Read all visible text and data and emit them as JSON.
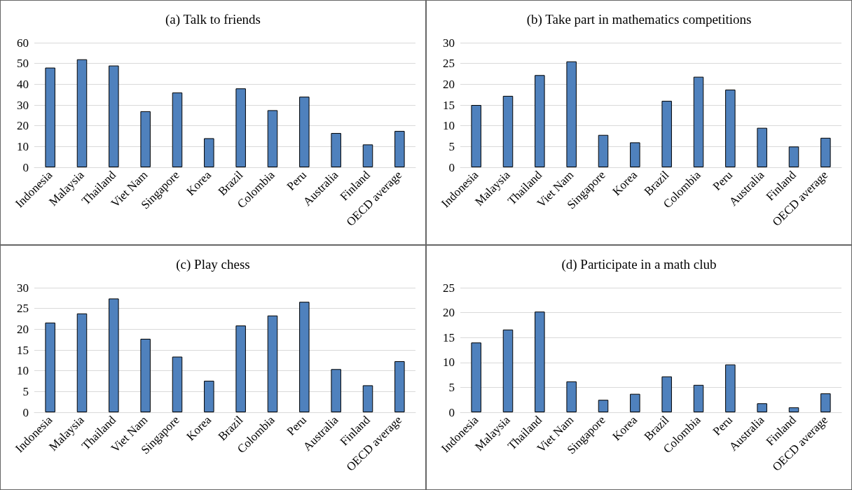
{
  "chart_data": [
    {
      "type": "bar",
      "title": "(a) Talk to friends",
      "categories": [
        "Indonesia",
        "Malaysia",
        "Thailand",
        "Viet Nam",
        "Singapore",
        "Korea",
        "Brazil",
        "Colombia",
        "Peru",
        "Australia",
        "Finland",
        "OECD average"
      ],
      "values": [
        48,
        52,
        49,
        27,
        36,
        14,
        38,
        27.5,
        34,
        16.5,
        11,
        17.5
      ],
      "color": "#4f81bd",
      "ylim": [
        0,
        60
      ],
      "yticks": [
        0,
        10,
        20,
        30,
        40,
        50,
        60
      ],
      "grid": "y"
    },
    {
      "type": "bar",
      "title": "(b) Take part in mathematics competitions",
      "categories": [
        "Indonesia",
        "Malaysia",
        "Thailand",
        "Viet Nam",
        "Singapore",
        "Korea",
        "Brazil",
        "Colombia",
        "Peru",
        "Australia",
        "Finland",
        "OECD average"
      ],
      "values": [
        15,
        17.2,
        22.2,
        25.5,
        7.8,
        6,
        16,
        21.8,
        18.7,
        9.5,
        5,
        7.1
      ],
      "color": "#4f81bd",
      "ylim": [
        0,
        30
      ],
      "yticks": [
        0,
        5,
        10,
        15,
        20,
        25,
        30
      ],
      "grid": "y"
    },
    {
      "type": "bar",
      "title": "(c) Play chess",
      "categories": [
        "Indonesia",
        "Malaysia",
        "Thailand",
        "Viet Nam",
        "Singapore",
        "Korea",
        "Brazil",
        "Colombia",
        "Peru",
        "Australia",
        "Finland",
        "OECD average"
      ],
      "values": [
        21.6,
        23.8,
        27.4,
        17.7,
        13.4,
        7.6,
        20.9,
        23.3,
        26.6,
        10.4,
        6.5,
        12.3
      ],
      "color": "#4f81bd",
      "ylim": [
        0,
        30
      ],
      "yticks": [
        0,
        5,
        10,
        15,
        20,
        25,
        30
      ],
      "grid": "y"
    },
    {
      "type": "bar",
      "title": "(d) Participate in a math club",
      "categories": [
        "Indonesia",
        "Malaysia",
        "Thailand",
        "Viet Nam",
        "Singapore",
        "Korea",
        "Brazil",
        "Colombia",
        "Peru",
        "Australia",
        "Finland",
        "OECD average"
      ],
      "values": [
        14,
        16.6,
        20.2,
        6.2,
        2.5,
        3.7,
        7.2,
        5.5,
        9.6,
        1.8,
        1.0,
        3.8
      ],
      "color": "#4f81bd",
      "ylim": [
        0,
        25
      ],
      "yticks": [
        0,
        5,
        10,
        15,
        20,
        25
      ],
      "grid": "y"
    }
  ]
}
